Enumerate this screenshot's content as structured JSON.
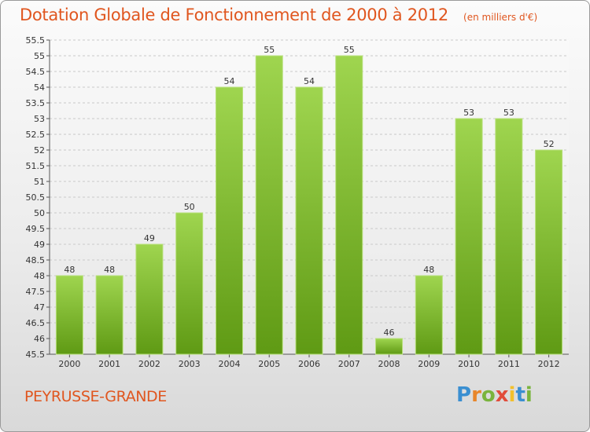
{
  "chart_data": {
    "type": "bar",
    "title": "Dotation Globale de Fonctionnement de 2000 à 2012",
    "subtitle": "(en milliers d'€)",
    "categories": [
      "2000",
      "2001",
      "2002",
      "2003",
      "2004",
      "2005",
      "2006",
      "2007",
      "2008",
      "2009",
      "2010",
      "2011",
      "2012"
    ],
    "values": [
      48,
      48,
      49,
      50,
      54,
      55,
      54,
      55,
      46,
      48,
      53,
      53,
      52
    ],
    "ylim": [
      45.5,
      55.5
    ],
    "yticks": [
      "45.5",
      "46",
      "46.5",
      "47",
      "47.5",
      "48",
      "48.5",
      "49",
      "49.5",
      "50",
      "50.5",
      "51",
      "51.5",
      "52",
      "52.5",
      "53",
      "53.5",
      "54",
      "54.5",
      "55",
      "55.5"
    ],
    "grid": true,
    "bar_color": "#7cb82e"
  },
  "footer": {
    "commune": "PEYRUSSE-GRANDE",
    "logo_text": "Proxiti"
  }
}
